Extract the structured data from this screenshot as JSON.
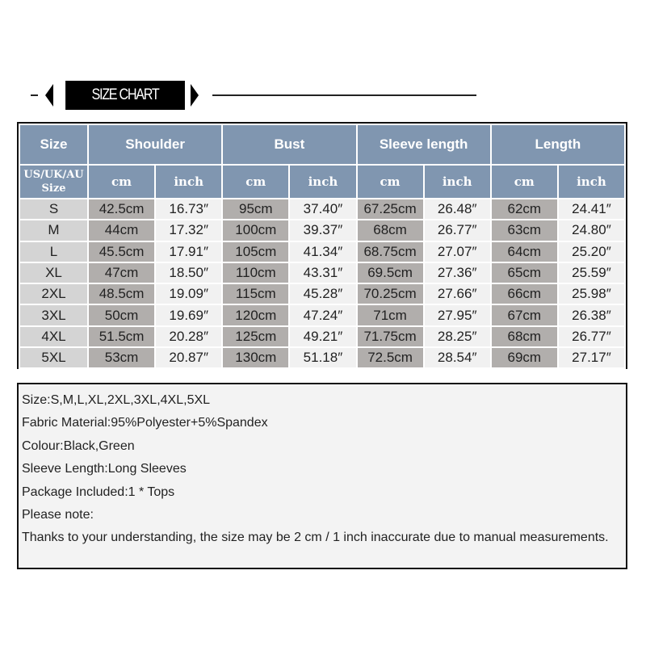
{
  "banner": {
    "title": "SIZE CHART"
  },
  "table": {
    "header": {
      "size": "Size",
      "groups": [
        "Shoulder",
        "Bust",
        "Sleeve length",
        "Length"
      ]
    },
    "subheader": {
      "size_line1": "US/UK/AU",
      "size_line2": "Size",
      "cm": "cm",
      "inch": "inch"
    },
    "rows": [
      [
        "S",
        "42.5cm",
        "16.73″",
        "95cm",
        "37.40″",
        "67.25cm",
        "26.48″",
        "62cm",
        "24.41″"
      ],
      [
        "M",
        "44cm",
        "17.32″",
        "100cm",
        "39.37″",
        "68cm",
        "26.77″",
        "63cm",
        "24.80″"
      ],
      [
        "L",
        "45.5cm",
        "17.91″",
        "105cm",
        "41.34″",
        "68.75cm",
        "27.07″",
        "64cm",
        "25.20″"
      ],
      [
        "XL",
        "47cm",
        "18.50″",
        "110cm",
        "43.31″",
        "69.5cm",
        "27.36″",
        "65cm",
        "25.59″"
      ],
      [
        "2XL",
        "48.5cm",
        "19.09″",
        "115cm",
        "45.28″",
        "70.25cm",
        "27.66″",
        "66cm",
        "25.98″"
      ],
      [
        "3XL",
        "50cm",
        "19.69″",
        "120cm",
        "47.24″",
        "71cm",
        "27.95″",
        "67cm",
        "26.38″"
      ],
      [
        "4XL",
        "51.5cm",
        "20.28″",
        "125cm",
        "49.21″",
        "71.75cm",
        "28.25″",
        "68cm",
        "26.77″"
      ],
      [
        "5XL",
        "53cm",
        "20.87″",
        "130cm",
        "51.18″",
        "72.5cm",
        "28.54″",
        "69cm",
        "27.17″"
      ]
    ]
  },
  "notes": [
    "Size:S,M,L,XL,2XL,3XL,4XL,5XL",
    "Fabric Material:95%Polyester+5%Spandex",
    "Colour:Black,Green",
    "Sleeve Length:Long Sleeves",
    "Package Included:1 * Tops",
    "Please note:",
    "Thanks to your understanding, the size may be 2 cm / 1 inch inaccurate due to manual measurements."
  ],
  "colors": {
    "header": "#8096b0",
    "size_col": "#d4d4d4",
    "cm_col": "#b1aeac",
    "inch_col": "#f1f1f1"
  }
}
